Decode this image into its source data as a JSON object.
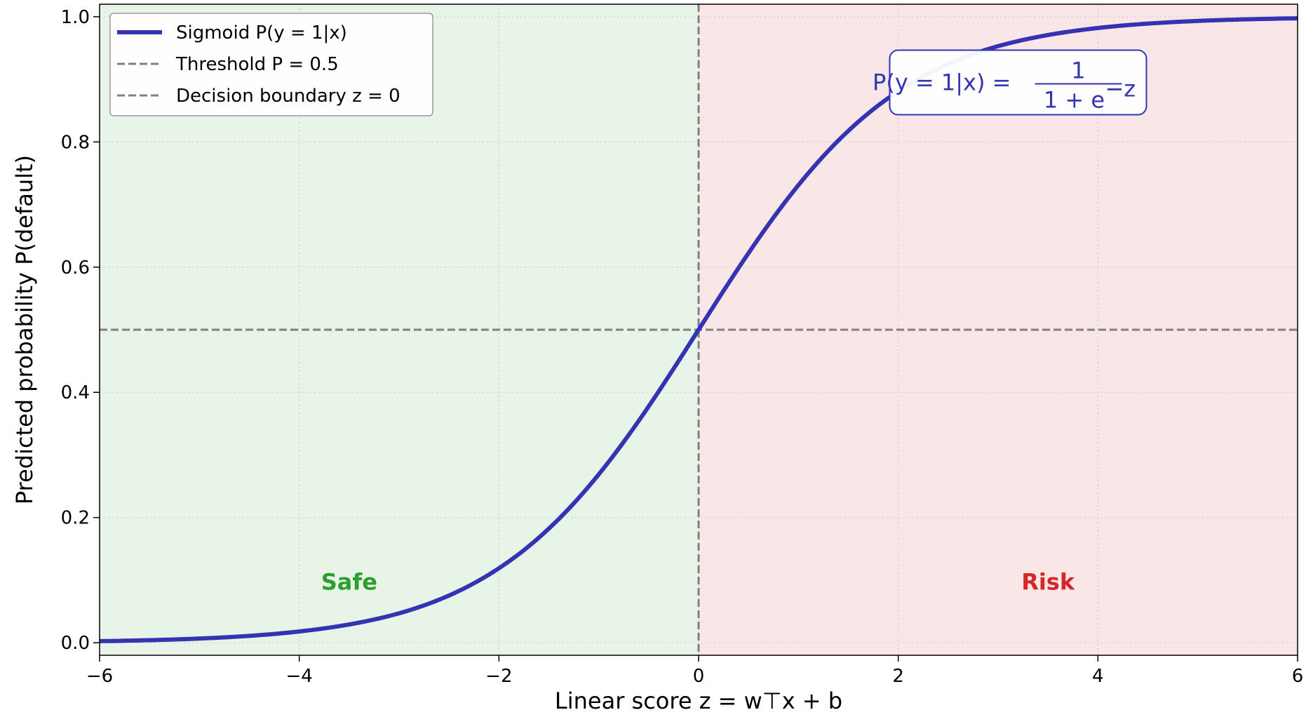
{
  "chart_data": {
    "type": "line",
    "xlabel": "Linear score z = w⊤x + b",
    "ylabel": "Predicted probability P(default)",
    "xlim": [
      -6,
      6
    ],
    "ylim": [
      -0.02,
      1.02
    ],
    "x_ticks": [
      -6,
      -4,
      -2,
      0,
      2,
      4,
      6
    ],
    "x_tick_labels": [
      "−6",
      "−4",
      "−2",
      "0",
      "2",
      "4",
      "6"
    ],
    "y_ticks": [
      0.0,
      0.2,
      0.4,
      0.6,
      0.8,
      1.0
    ],
    "y_tick_labels": [
      "0.0",
      "0.2",
      "0.4",
      "0.6",
      "0.8",
      "1.0"
    ],
    "grid": true,
    "legend_position": "top-left",
    "series": [
      {
        "name": "Sigmoid P(y = 1|x)",
        "color": "#3333b3",
        "x": [
          -6,
          -5,
          -4,
          -3,
          -2,
          -1,
          0,
          1,
          2,
          3,
          4,
          5,
          6
        ],
        "y": [
          0.0025,
          0.0067,
          0.018,
          0.047,
          0.119,
          0.269,
          0.5,
          0.731,
          0.881,
          0.953,
          0.982,
          0.9933,
          0.9975
        ]
      }
    ],
    "reference_lines": [
      {
        "name": "Threshold P = 0.5",
        "orientation": "horizontal",
        "value": 0.5,
        "color": "#808080",
        "style": "dashed"
      },
      {
        "name": "Decision boundary z = 0",
        "orientation": "vertical",
        "value": 0,
        "color": "#808080",
        "style": "dashed"
      }
    ],
    "regions": [
      {
        "label": "Safe",
        "x_range": [
          -6,
          0
        ],
        "fill": "#e8f4e8",
        "text_color": "#2ca02c",
        "label_at": {
          "x": -3.5,
          "y": 0.095
        }
      },
      {
        "label": "Risk",
        "x_range": [
          0,
          6
        ],
        "fill": "#f9e6e7",
        "text_color": "#d62728",
        "label_at": {
          "x": 3.5,
          "y": 0.095
        }
      }
    ],
    "annotation": {
      "lhs": "P(y = 1|x) =",
      "numerator": "1",
      "denominator": "1 + e",
      "exponent": "−z",
      "at": {
        "x": 3.2,
        "y": 0.895
      }
    }
  }
}
